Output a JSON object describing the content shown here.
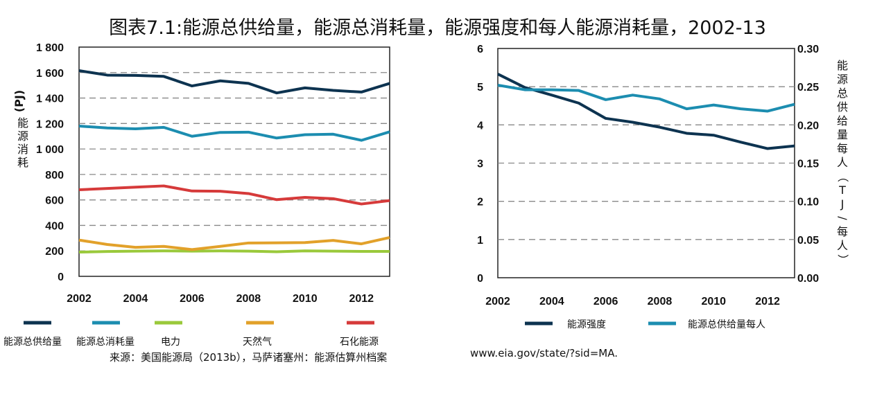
{
  "title": "图表7.1:能源总供给量，能源总消耗量，能源强度和每人能源消耗量，2002-13",
  "source_text": "来源：美国能源局（2013b），马萨诸塞州：能源估算州档案",
  "source_url": "www.eia.gov/state/?sid=MA.",
  "chart_data": [
    {
      "type": "line",
      "ylabel_unit": "(PJ)",
      "ylabel": "能源消耗",
      "x": [
        2002,
        2003,
        2004,
        2005,
        2006,
        2007,
        2008,
        2009,
        2010,
        2011,
        2012,
        2013
      ],
      "xticks": [
        "2002",
        "2004",
        "2006",
        "2008",
        "2010",
        "2012"
      ],
      "yticks": [
        "0",
        "200",
        "400",
        "600",
        "800",
        "1 000",
        "1 200",
        "1 400",
        "1 600",
        "1 800"
      ],
      "ylim": [
        0,
        1800
      ],
      "grid": true,
      "legend_position": "bottom",
      "series": [
        {
          "name": "能源总供给量",
          "color": "#0d3350",
          "values": [
            1615,
            1580,
            1578,
            1570,
            1495,
            1535,
            1515,
            1440,
            1480,
            1460,
            1447,
            1515
          ]
        },
        {
          "name": "能源总消耗量",
          "color": "#1c8db0",
          "values": [
            1180,
            1165,
            1158,
            1170,
            1100,
            1130,
            1132,
            1086,
            1112,
            1116,
            1068,
            1135
          ]
        },
        {
          "name": "电力",
          "color": "#9ac93b",
          "values": [
            190,
            195,
            198,
            200,
            198,
            200,
            198,
            193,
            200,
            198,
            196,
            196
          ]
        },
        {
          "name": "天然气",
          "color": "#e2a12a",
          "values": [
            285,
            250,
            228,
            235,
            210,
            235,
            262,
            263,
            265,
            282,
            255,
            305
          ]
        },
        {
          "name": "石化能源",
          "color": "#d63a3a",
          "values": [
            680,
            690,
            700,
            710,
            670,
            668,
            650,
            602,
            620,
            610,
            568,
            595
          ]
        }
      ]
    },
    {
      "type": "line",
      "ylabel_right": "能源总供给量每人（TJ/每人）",
      "x": [
        2002,
        2003,
        2004,
        2005,
        2006,
        2007,
        2008,
        2009,
        2010,
        2011,
        2012,
        2013
      ],
      "xticks": [
        "2002",
        "2004",
        "2006",
        "2008",
        "2010",
        "2012"
      ],
      "yticks_left": [
        "0",
        "1",
        "2",
        "3",
        "4",
        "5",
        "6"
      ],
      "yticks_right": [
        "0.00",
        "0.05",
        "0.10",
        "0.15",
        "0.20",
        "0.25",
        "0.30"
      ],
      "ylim_left": [
        0,
        6
      ],
      "ylim_right": [
        0,
        0.3
      ],
      "grid": true,
      "legend_position": "bottom",
      "series": [
        {
          "name": "能源强度",
          "color": "#0d3350",
          "axis": "left",
          "values": [
            5.33,
            4.98,
            4.78,
            4.57,
            4.17,
            4.07,
            3.94,
            3.78,
            3.73,
            3.55,
            3.38,
            3.45
          ]
        },
        {
          "name": "能源总供给量每人",
          "color": "#1c8db0",
          "axis": "right",
          "values": [
            0.252,
            0.246,
            0.246,
            0.245,
            0.233,
            0.239,
            0.234,
            0.221,
            0.226,
            0.221,
            0.218,
            0.227
          ]
        }
      ]
    }
  ]
}
